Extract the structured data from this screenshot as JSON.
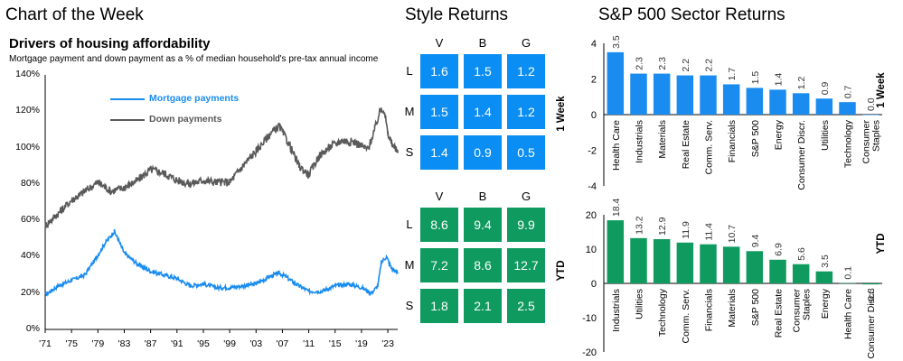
{
  "header": {
    "chart_of_week": "Chart of the Week",
    "style_returns": "Style Returns",
    "sector_returns": "S&P 500 Sector Returns"
  },
  "housing": {
    "title": "Drivers of housing affordability",
    "subtitle": "Mortgage payment and down payment as a % of median household's pre-tax annual income",
    "y_ticks": [
      "140%",
      "120%",
      "100%",
      "80%",
      "60%",
      "40%",
      "20%",
      "0%"
    ],
    "x_ticks": [
      "'71",
      "'75",
      "'79",
      "'83",
      "'87",
      "'91",
      "'95",
      "'99",
      "'03",
      "'07",
      "'11",
      "'15",
      "'19",
      "'23"
    ],
    "legend": [
      "Mortgage payments",
      "Down payments"
    ],
    "colors": {
      "mortgage": "#1a8cf0",
      "down": "#595959"
    }
  },
  "style_grid": {
    "columns": [
      "V",
      "B",
      "G"
    ],
    "rows": [
      "L",
      "M",
      "S"
    ],
    "week": [
      [
        "1.6",
        "1.5",
        "1.2"
      ],
      [
        "1.5",
        "1.4",
        "1.2"
      ],
      [
        "1.4",
        "0.9",
        "0.5"
      ]
    ],
    "ytd": [
      [
        "8.6",
        "9.4",
        "9.9"
      ],
      [
        "7.2",
        "8.6",
        "12.7"
      ],
      [
        "1.8",
        "2.1",
        "2.5"
      ]
    ],
    "colors": {
      "week": "#0b8ef3",
      "ytd": "#0f9a5f"
    }
  },
  "sector": {
    "week_side_label": "1 Week",
    "ytd_side_label": "YTD",
    "week_ylabel": "1 Week",
    "ytd_ylabel": "YTD"
  },
  "chart_data": [
    {
      "type": "line",
      "title": "Drivers of housing affordability",
      "subtitle": "Mortgage payment and down payment as a % of median household's pre-tax annual income",
      "ylim": [
        0,
        140
      ],
      "xlim": [
        1971,
        2024.5
      ],
      "series": [
        {
          "name": "Mortgage payments",
          "x": [
            1971,
            1973,
            1975,
            1977,
            1978.5,
            1980,
            1981.5,
            1982,
            1983,
            1985,
            1987,
            1989,
            1991,
            1993,
            1995,
            1997,
            1999,
            2001,
            2003,
            2005,
            2006.5,
            2007.5,
            2009,
            2011,
            2013,
            2015,
            2017,
            2019,
            2020.5,
            2021.5,
            2022,
            2022.8,
            2023.5,
            2024.5
          ],
          "y": [
            19,
            24,
            27,
            30,
            38,
            47,
            54,
            50,
            42,
            36,
            32,
            30,
            28,
            24,
            25,
            23,
            23,
            24,
            25,
            29,
            31,
            29,
            25,
            21,
            21,
            24,
            25,
            23,
            20,
            24,
            37,
            40,
            34,
            31
          ]
        },
        {
          "name": "Down payments",
          "x": [
            1971,
            1973,
            1975,
            1977,
            1979,
            1981,
            1983,
            1985,
            1987,
            1989,
            1991,
            1993,
            1995,
            1997,
            1999,
            2001,
            2003,
            2005,
            2006.5,
            2008,
            2009.5,
            2011,
            2012.5,
            2014,
            2016,
            2018,
            2020,
            2021,
            2022,
            2022.5,
            2023,
            2024,
            2024.5
          ],
          "y": [
            57,
            64,
            71,
            76,
            81,
            76,
            78,
            82,
            88,
            86,
            82,
            80,
            82,
            81,
            81,
            90,
            98,
            107,
            112,
            102,
            90,
            85,
            95,
            100,
            104,
            103,
            99,
            110,
            122,
            120,
            107,
            100,
            97
          ]
        }
      ]
    },
    {
      "type": "table",
      "title": "Style Returns",
      "period": "1 Week",
      "columns": [
        "V",
        "B",
        "G"
      ],
      "rows": [
        "L",
        "M",
        "S"
      ],
      "values": [
        [
          1.6,
          1.5,
          1.2
        ],
        [
          1.5,
          1.4,
          1.2
        ],
        [
          1.4,
          0.9,
          0.5
        ]
      ]
    },
    {
      "type": "table",
      "title": "Style Returns",
      "period": "YTD",
      "columns": [
        "V",
        "B",
        "G"
      ],
      "rows": [
        "L",
        "M",
        "S"
      ],
      "values": [
        [
          8.6,
          9.4,
          9.9
        ],
        [
          7.2,
          8.6,
          12.7
        ],
        [
          1.8,
          2.1,
          2.5
        ]
      ]
    },
    {
      "type": "bar",
      "title": "S&P 500 Sector Returns",
      "ylabel": "1 Week",
      "ylim": [
        -4,
        4
      ],
      "yticks": [
        "4",
        "2",
        "0",
        "-2",
        "-4"
      ],
      "categories": [
        "Health Care",
        "Industrials",
        "Materials",
        "Real Estate",
        "Comm. Serv.",
        "Financials",
        "S&P 500",
        "Energy",
        "Consumer Discr.",
        "Utilities",
        "Technology",
        "Consumer Staples"
      ],
      "values": [
        3.5,
        2.3,
        2.3,
        2.2,
        2.2,
        1.7,
        1.5,
        1.4,
        1.2,
        0.9,
        0.7,
        0.0
      ],
      "value_labels": [
        "3.5",
        "2.3",
        "2.3",
        "2.2",
        "2.2",
        "1.7",
        "1.5",
        "1.4",
        "1.2",
        "0.9",
        "0.7",
        "0.0"
      ],
      "color": "#1a8cf0"
    },
    {
      "type": "bar",
      "title": "S&P 500 Sector Returns",
      "ylabel": "YTD",
      "ylim": [
        -20,
        20
      ],
      "yticks": [
        "20",
        "10",
        "0",
        "-10",
        "-20"
      ],
      "categories": [
        "Industrials",
        "Utilities",
        "Technology",
        "Comm. Serv.",
        "Financials",
        "Materials",
        "S&P 500",
        "Real Estate",
        "Consumer Staples",
        "Energy",
        "Health Care",
        "Consumer Discr."
      ],
      "values": [
        18.4,
        13.2,
        12.9,
        11.9,
        11.4,
        10.7,
        9.4,
        6.9,
        5.6,
        3.5,
        0.1,
        -0.3
      ],
      "value_labels": [
        "18.4",
        "13.2",
        "12.9",
        "11.9",
        "11.4",
        "10.7",
        "9.4",
        "6.9",
        "5.6",
        "3.5",
        "0.1",
        "-0.3"
      ],
      "color": "#0f9a5f"
    }
  ]
}
